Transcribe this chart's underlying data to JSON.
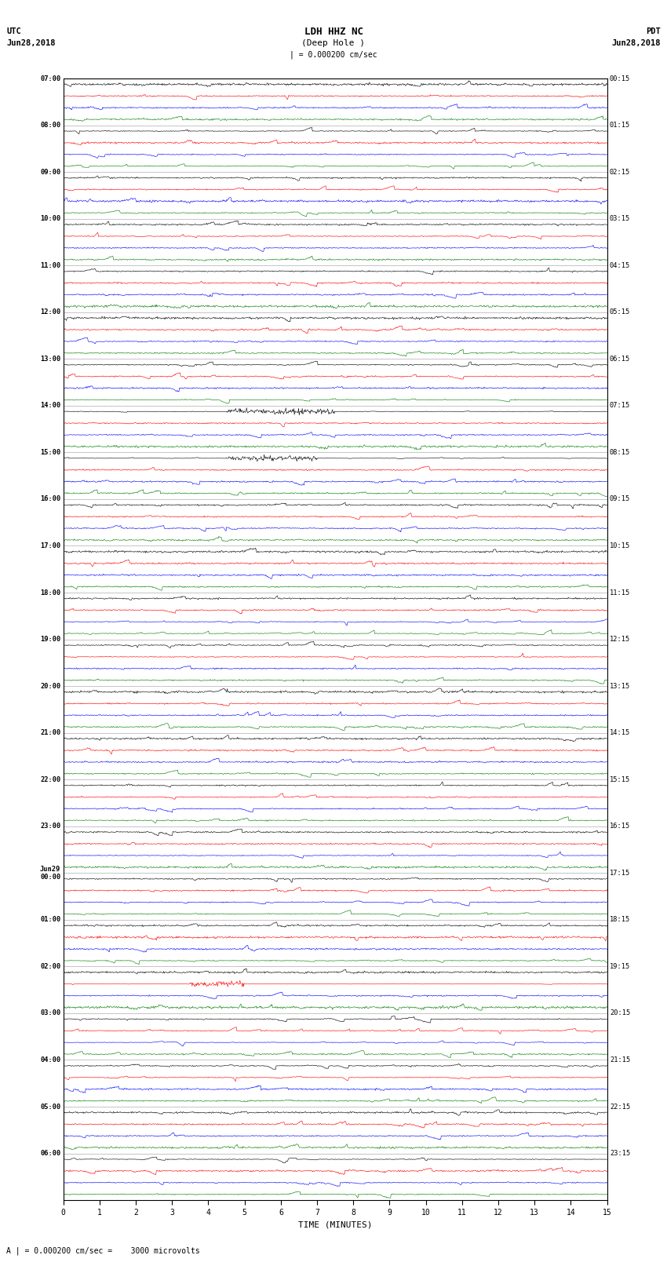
{
  "title_line1": "LDH HHZ NC",
  "title_line2": "(Deep Hole )",
  "scale_label": "| = 0.000200 cm/sec",
  "footer_label": "A | = 0.000200 cm/sec =    3000 microvolts",
  "xlabel": "TIME (MINUTES)",
  "xlim": [
    0,
    15
  ],
  "xticks": [
    0,
    1,
    2,
    3,
    4,
    5,
    6,
    7,
    8,
    9,
    10,
    11,
    12,
    13,
    14,
    15
  ],
  "bg_color": "white",
  "trace_colors": [
    "black",
    "red",
    "blue",
    "green"
  ],
  "left_times": [
    "07:00",
    "08:00",
    "09:00",
    "10:00",
    "11:00",
    "12:00",
    "13:00",
    "14:00",
    "15:00",
    "16:00",
    "17:00",
    "18:00",
    "19:00",
    "20:00",
    "21:00",
    "22:00",
    "23:00",
    "Jun29\n00:00",
    "01:00",
    "02:00",
    "03:00",
    "04:00",
    "05:00",
    "06:00"
  ],
  "right_times": [
    "00:15",
    "01:15",
    "02:15",
    "03:15",
    "04:15",
    "05:15",
    "06:15",
    "07:15",
    "08:15",
    "09:15",
    "10:15",
    "11:15",
    "12:15",
    "13:15",
    "14:15",
    "15:15",
    "16:15",
    "17:15",
    "18:15",
    "19:15",
    "20:15",
    "21:15",
    "22:15",
    "23:15"
  ],
  "n_rows": 24,
  "traces_per_row": 4,
  "n_points": 900,
  "amplitude_base": 0.35,
  "fig_width": 8.5,
  "fig_height": 16.13,
  "dpi": 100
}
